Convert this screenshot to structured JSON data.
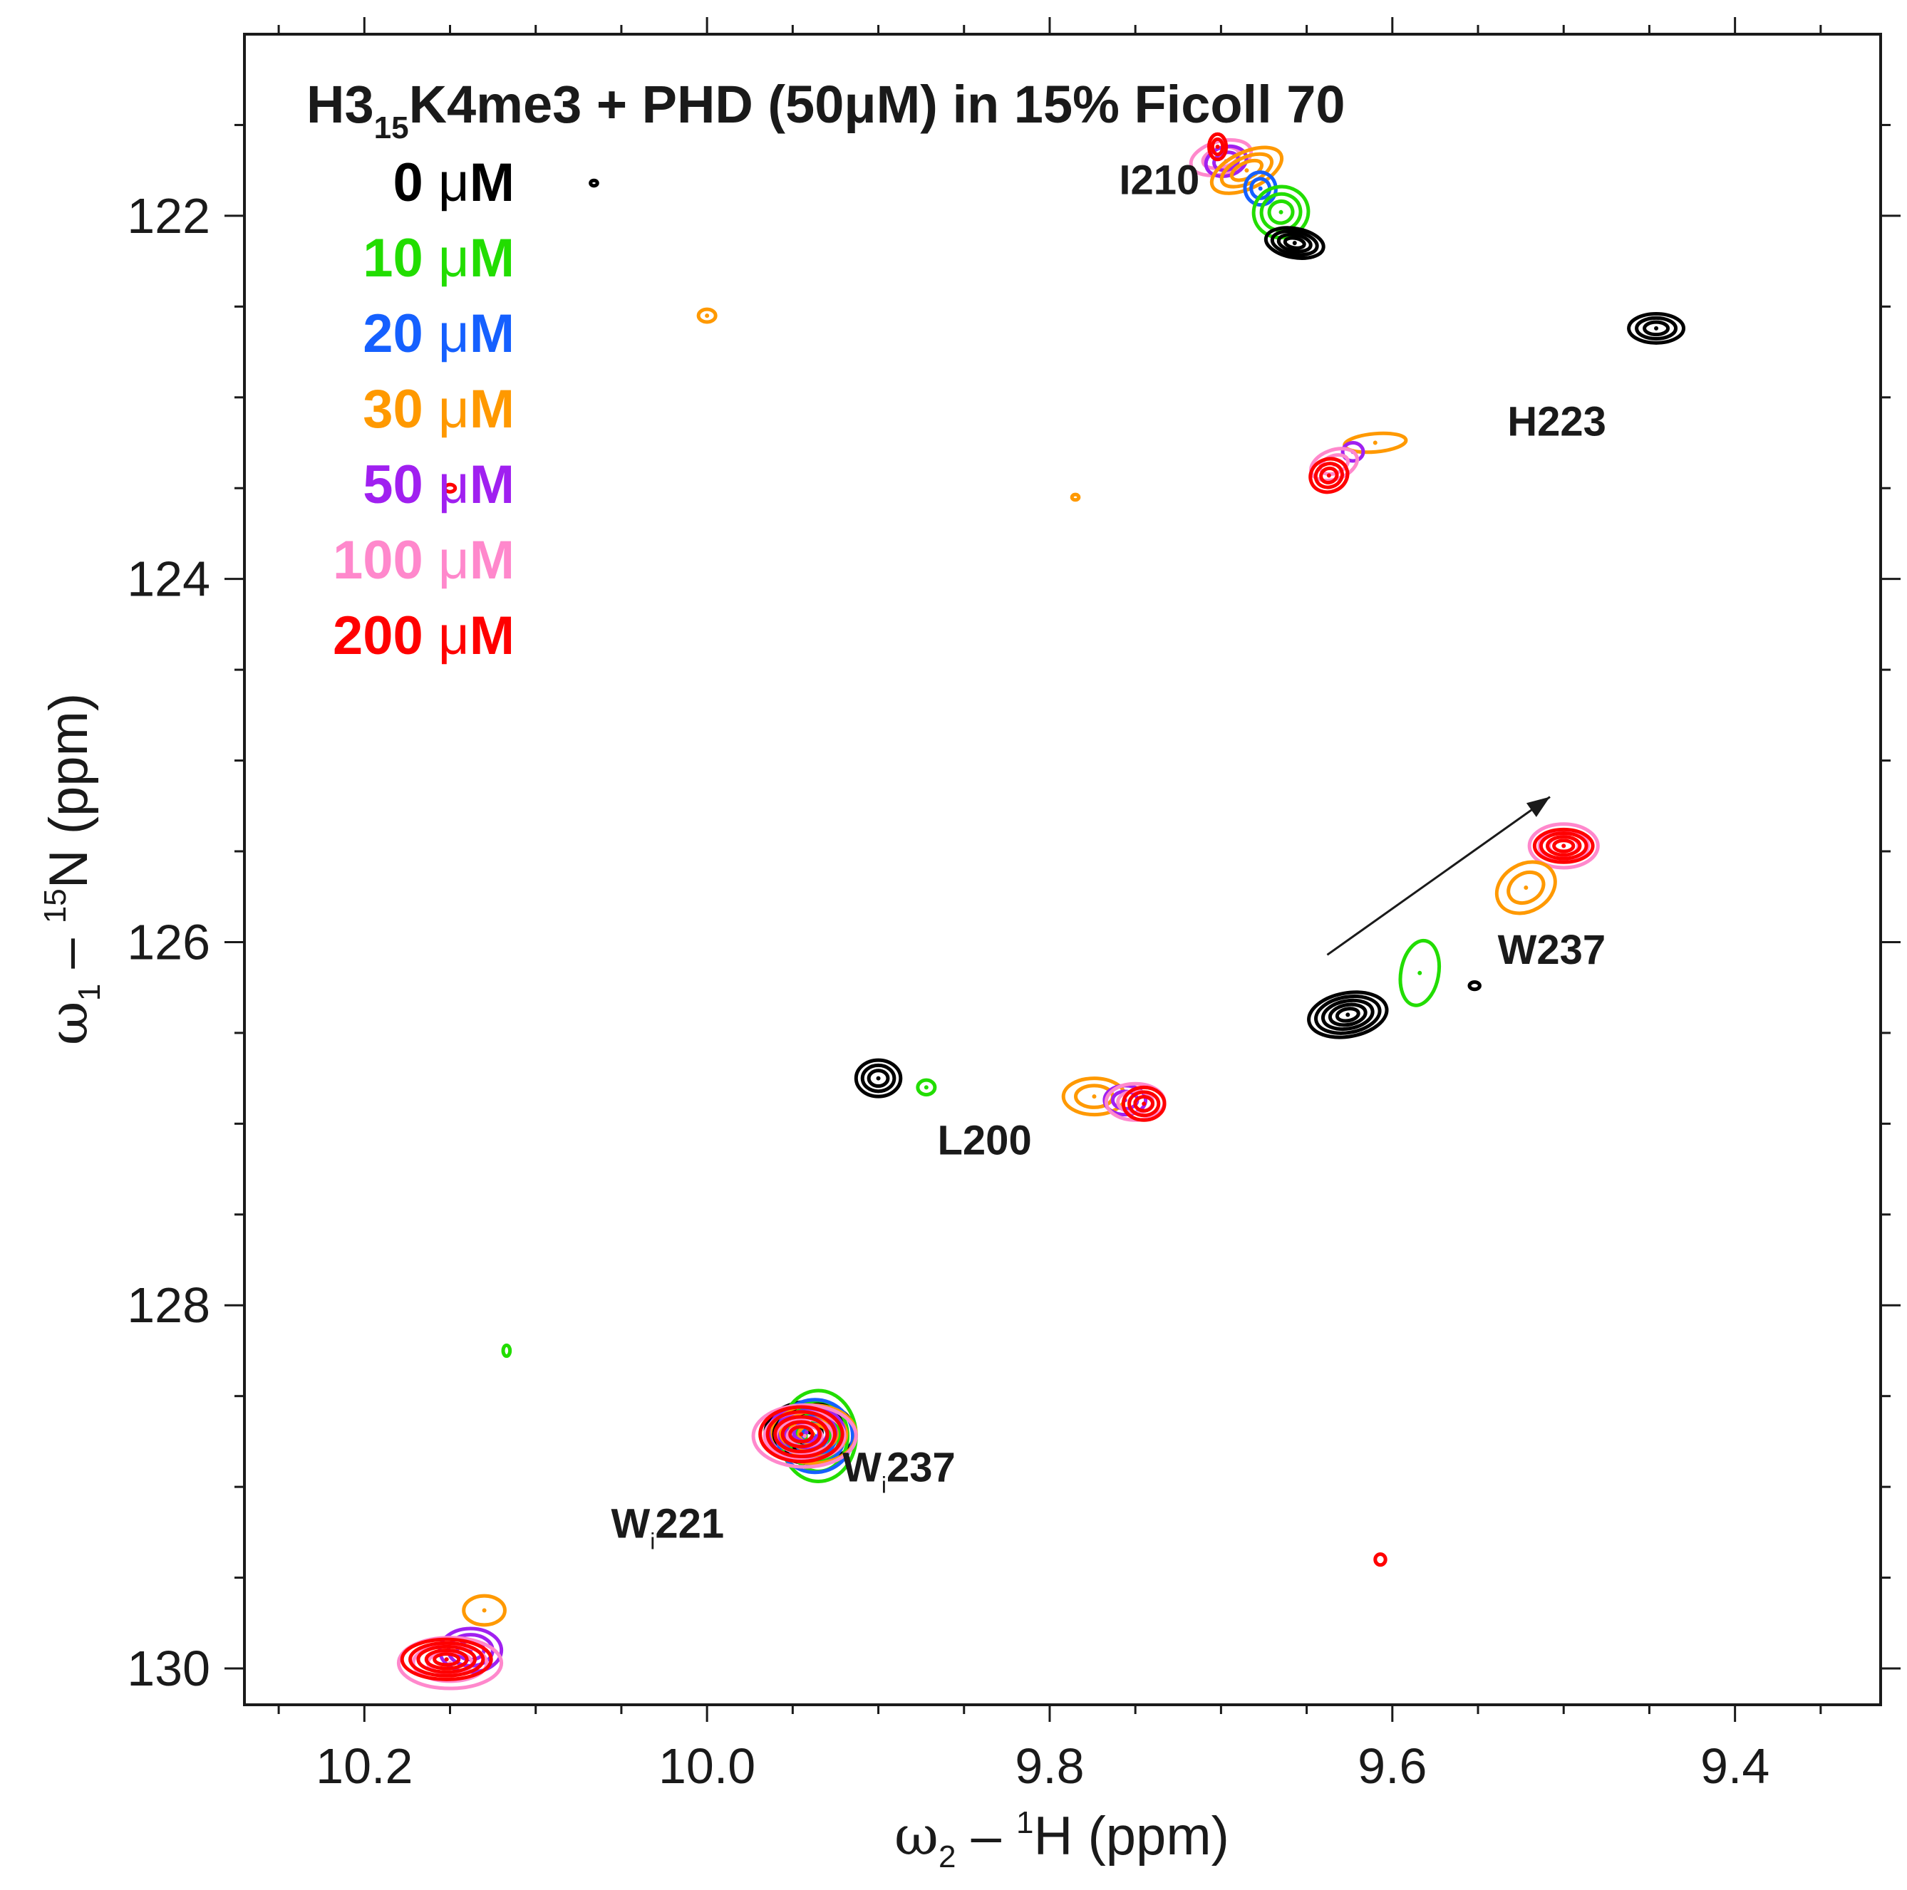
{
  "chart_data": {
    "type": "scatter",
    "subtype": "2D NMR HSQC spectrum overlay (contour plot)",
    "title": {
      "prefix": "H3",
      "subscript": "15",
      "suffix": "K4me3 + PHD (50μM) in 15% Ficoll 70"
    },
    "xlabel": {
      "omega": "ω",
      "omega_sub": "2",
      "dash": " – ",
      "iso": "1",
      "nucleus": "H (ppm)"
    },
    "ylabel": {
      "omega": "ω",
      "omega_sub": "1",
      "dash": " – ",
      "iso": "15",
      "nucleus": "N (ppm)"
    },
    "xlim": [
      10.27,
      9.315
    ],
    "ylim": [
      121.0,
      130.2
    ],
    "x_reversed": true,
    "y_reversed": true,
    "x_ticks": [
      10.2,
      10.0,
      9.8,
      9.6,
      9.4
    ],
    "x_tick_labels": [
      "10.2",
      "10.0",
      "9.8",
      "9.6",
      "9.4"
    ],
    "x_minor_step": 0.05,
    "y_ticks": [
      122,
      124,
      126,
      128,
      130
    ],
    "y_tick_labels": [
      "122",
      "124",
      "126",
      "128",
      "130"
    ],
    "y_minor_step": 0.5,
    "grid": false,
    "legend_position": "top-left",
    "series": [
      {
        "name": "0 μM",
        "conc": "0",
        "unit": "μM",
        "color": "#000000"
      },
      {
        "name": "10 μM",
        "conc": "10",
        "unit": "μM",
        "color": "#22dd00"
      },
      {
        "name": "20 μM",
        "conc": "20",
        "unit": "μM",
        "color": "#1560ff"
      },
      {
        "name": "30 μM",
        "conc": "30",
        "unit": "μM",
        "color": "#ff9900"
      },
      {
        "name": "50 μM",
        "conc": "50",
        "unit": "μM",
        "color": "#a020f0"
      },
      {
        "name": "100 μM",
        "conc": "100",
        "unit": "μM",
        "color": "#ff88cc"
      },
      {
        "name": "200 μM",
        "conc": "200",
        "unit": "μM",
        "color": "#ff0000"
      }
    ],
    "peaks": [
      {
        "series": "100 μM",
        "label": "I210",
        "x": 9.7,
        "y": 121.68,
        "rx": 0.018,
        "ry": 0.09,
        "levels": 2,
        "rot": -15
      },
      {
        "series": "50 μM",
        "label": "I210",
        "x": 9.697,
        "y": 121.7,
        "rx": 0.012,
        "ry": 0.08,
        "levels": 2,
        "rot": -15
      },
      {
        "series": "30 μM",
        "label": "I210",
        "x": 9.685,
        "y": 121.75,
        "rx": 0.022,
        "ry": 0.1,
        "levels": 3,
        "rot": -25
      },
      {
        "series": "20 μM",
        "label": "I210",
        "x": 9.677,
        "y": 121.85,
        "rx": 0.009,
        "ry": 0.09,
        "levels": 2,
        "rot": -10
      },
      {
        "series": "10 μM",
        "label": "I210",
        "x": 9.665,
        "y": 121.98,
        "rx": 0.016,
        "ry": 0.14,
        "levels": 3,
        "rot": -10
      },
      {
        "series": "0 μM",
        "label": "I210",
        "x": 9.657,
        "y": 122.15,
        "rx": 0.017,
        "ry": 0.08,
        "levels": 4,
        "rot": 10
      },
      {
        "series": "200 μM",
        "label": "I210",
        "x": 9.702,
        "y": 121.62,
        "rx": 0.005,
        "ry": 0.07,
        "levels": 2,
        "rot": 0
      },
      {
        "series": "0 μM",
        "label": "",
        "x": 9.446,
        "y": 122.62,
        "rx": 0.016,
        "ry": 0.08,
        "levels": 3,
        "rot": 0
      },
      {
        "series": "30 μM",
        "label": "H223",
        "x": 9.61,
        "y": 123.25,
        "rx": 0.018,
        "ry": 0.05,
        "levels": 1,
        "rot": -5
      },
      {
        "series": "50 μM",
        "label": "H223",
        "x": 9.623,
        "y": 123.3,
        "rx": 0.006,
        "ry": 0.05,
        "levels": 1,
        "rot": 0
      },
      {
        "series": "100 μM",
        "label": "H223",
        "x": 9.634,
        "y": 123.37,
        "rx": 0.014,
        "ry": 0.08,
        "levels": 2,
        "rot": -20
      },
      {
        "series": "200 μM",
        "label": "H223",
        "x": 9.637,
        "y": 123.43,
        "rx": 0.011,
        "ry": 0.09,
        "levels": 3,
        "rot": -20
      },
      {
        "series": "100 μM",
        "label": "W237",
        "x": 9.5,
        "y": 125.47,
        "rx": 0.02,
        "ry": 0.12,
        "levels": 3,
        "rot": 0
      },
      {
        "series": "200 μM",
        "label": "W237",
        "x": 9.5,
        "y": 125.47,
        "rx": 0.017,
        "ry": 0.09,
        "levels": 4,
        "rot": 0
      },
      {
        "series": "30 μM",
        "label": "W237",
        "x": 9.522,
        "y": 125.7,
        "rx": 0.018,
        "ry": 0.13,
        "levels": 2,
        "rot": -30
      },
      {
        "series": "10 μM",
        "label": "W237",
        "x": 9.584,
        "y": 126.17,
        "rx": 0.011,
        "ry": 0.18,
        "levels": 1,
        "rot": 10
      },
      {
        "series": "0 μM",
        "label": "W237",
        "x": 9.626,
        "y": 126.4,
        "rx": 0.023,
        "ry": 0.12,
        "levels": 5,
        "rot": -10
      },
      {
        "series": "0 μM",
        "label": "L200",
        "x": 9.9,
        "y": 126.75,
        "rx": 0.013,
        "ry": 0.1,
        "levels": 3,
        "rot": 0
      },
      {
        "series": "10 μM",
        "label": "L200",
        "x": 9.872,
        "y": 126.8,
        "rx": 0.005,
        "ry": 0.04,
        "levels": 1,
        "rot": 0
      },
      {
        "series": "30 μM",
        "label": "L200",
        "x": 9.774,
        "y": 126.85,
        "rx": 0.018,
        "ry": 0.1,
        "levels": 2,
        "rot": 0
      },
      {
        "series": "50 μM",
        "label": "L200",
        "x": 9.756,
        "y": 126.87,
        "rx": 0.012,
        "ry": 0.08,
        "levels": 2,
        "rot": 0
      },
      {
        "series": "100 μM",
        "label": "L200",
        "x": 9.75,
        "y": 126.88,
        "rx": 0.017,
        "ry": 0.1,
        "levels": 2,
        "rot": 0
      },
      {
        "series": "200 μM",
        "label": "L200",
        "x": 9.745,
        "y": 126.89,
        "rx": 0.012,
        "ry": 0.09,
        "levels": 3,
        "rot": 0
      },
      {
        "series": "0 μM",
        "label": "Wi237",
        "x": 9.94,
        "y": 128.7,
        "rx": 0.026,
        "ry": 0.17,
        "levels": 5,
        "rot": 0
      },
      {
        "series": "10 μM",
        "label": "Wi237",
        "x": 9.935,
        "y": 128.72,
        "rx": 0.022,
        "ry": 0.25,
        "levels": 4,
        "rot": 0
      },
      {
        "series": "20 μM",
        "label": "Wi237",
        "x": 9.937,
        "y": 128.72,
        "rx": 0.022,
        "ry": 0.2,
        "levels": 4,
        "rot": 0
      },
      {
        "series": "30 μM",
        "label": "Wi237",
        "x": 9.938,
        "y": 128.71,
        "rx": 0.025,
        "ry": 0.16,
        "levels": 4,
        "rot": 0
      },
      {
        "series": "50 μM",
        "label": "Wi237",
        "x": 9.942,
        "y": 128.7,
        "rx": 0.022,
        "ry": 0.15,
        "levels": 4,
        "rot": 0
      },
      {
        "series": "100 μM",
        "label": "Wi237",
        "x": 9.943,
        "y": 128.72,
        "rx": 0.03,
        "ry": 0.17,
        "levels": 4,
        "rot": 0
      },
      {
        "series": "200 μM",
        "label": "Wi237",
        "x": 9.945,
        "y": 128.71,
        "rx": 0.024,
        "ry": 0.15,
        "levels": 5,
        "rot": 0
      },
      {
        "series": "30 μM",
        "label": "Wi221",
        "x": 10.13,
        "y": 129.68,
        "rx": 0.012,
        "ry": 0.08,
        "levels": 1,
        "rot": 0
      },
      {
        "series": "50 μM",
        "label": "Wi221",
        "x": 10.138,
        "y": 129.9,
        "rx": 0.018,
        "ry": 0.12,
        "levels": 3,
        "rot": 0
      },
      {
        "series": "100 μM",
        "label": "Wi221",
        "x": 10.15,
        "y": 129.97,
        "rx": 0.03,
        "ry": 0.14,
        "levels": 3,
        "rot": 0
      },
      {
        "series": "200 μM",
        "label": "Wi221",
        "x": 10.152,
        "y": 129.95,
        "rx": 0.026,
        "ry": 0.11,
        "levels": 5,
        "rot": 0
      },
      {
        "series": "0 μM",
        "label": "",
        "x": 10.066,
        "y": 121.82,
        "rx": 0.002,
        "ry": 0.015,
        "levels": 1,
        "rot": 0
      },
      {
        "series": "30 μM",
        "label": "",
        "x": 10.0,
        "y": 122.55,
        "rx": 0.005,
        "ry": 0.035,
        "levels": 1,
        "rot": 0
      },
      {
        "series": "30 μM",
        "label": "",
        "x": 9.785,
        "y": 123.55,
        "rx": 0.002,
        "ry": 0.015,
        "levels": 1,
        "rot": 0
      },
      {
        "series": "200 μM",
        "label": "",
        "x": 10.15,
        "y": 123.5,
        "rx": 0.003,
        "ry": 0.02,
        "levels": 1,
        "rot": 0
      },
      {
        "series": "10 μM",
        "label": "",
        "x": 10.117,
        "y": 128.25,
        "rx": 0.002,
        "ry": 0.03,
        "levels": 1,
        "rot": 0
      },
      {
        "series": "200 μM",
        "label": "",
        "x": 9.607,
        "y": 129.4,
        "rx": 0.003,
        "ry": 0.03,
        "levels": 1,
        "rot": 0
      },
      {
        "series": "0 μM",
        "label": "",
        "x": 9.552,
        "y": 126.24,
        "rx": 0.003,
        "ry": 0.02,
        "levels": 1,
        "rot": 0
      }
    ],
    "annotations": [
      {
        "text": "I210",
        "x": 9.736,
        "y": 121.88
      },
      {
        "text": "H223",
        "x": 9.504,
        "y": 123.21
      },
      {
        "text": "W237",
        "x": 9.507,
        "y": 126.12
      },
      {
        "text": "L200",
        "x": 9.838,
        "y": 127.17
      },
      {
        "text": "W",
        "sub": "i",
        "rest": "237",
        "x": 9.888,
        "y": 128.97
      },
      {
        "text": "W",
        "sub": "i",
        "rest": "221",
        "x": 10.023,
        "y": 129.28
      }
    ],
    "arrow": {
      "x1": 9.638,
      "y1": 126.07,
      "x2": 9.508,
      "y2": 125.2
    }
  }
}
